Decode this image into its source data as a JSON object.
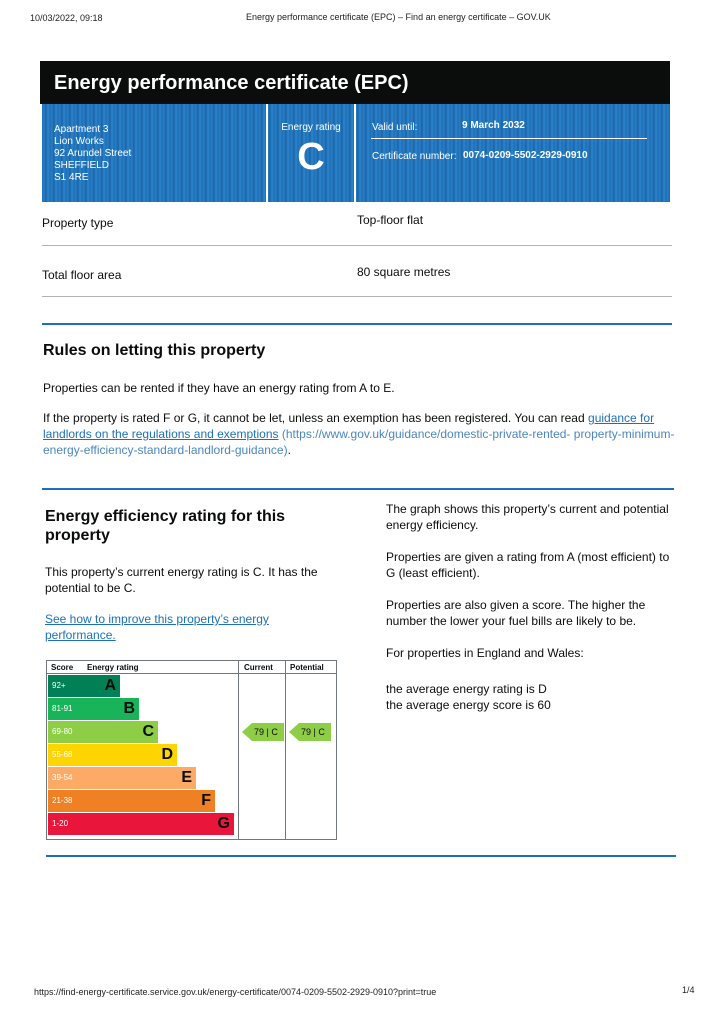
{
  "print_header": {
    "date": "10/03/2022, 09:18",
    "title": "Energy performance certificate (EPC) – Find an energy certificate – GOV.UK"
  },
  "print_footer": {
    "url": "https://find-energy-certificate.service.gov.uk/energy-certificate/0074-0209-5502-2929-0910?print=true",
    "page": "1/4"
  },
  "header": {
    "title": "Energy performance certificate (EPC)"
  },
  "certificate": {
    "address": [
      "Apartment 3",
      "Lion Works",
      "92 Arundel Street",
      "SHEFFIELD",
      "S1 4RE"
    ],
    "rating_label": "Energy rating",
    "rating": "C",
    "valid_label": "Valid until:",
    "valid_date": "9 March 2032",
    "cert_label": "Certificate number:",
    "cert_number": "0074-0209-5502-2929-0910",
    "banner_color": "#1d70b8"
  },
  "property": {
    "type_label": "Property type",
    "type_value": "Top-floor flat",
    "area_label": "Total floor area",
    "area_value": "80 square metres"
  },
  "rules": {
    "heading": "Rules on letting this property",
    "p1": "Properties can be rented if they have an energy rating from A to E.",
    "p2": "If the property is rated F or G, it cannot be let, unless an exemption has been registered. You can read",
    "link_text": "guidance for landlords on the regulations and exemptions",
    "link_url_a": "(https://www.gov.uk/guidance/domestic-private-rented-",
    "link_url_b": "property-minimum-energy-efficiency-standard-landlord-guidance)",
    "link_end": "."
  },
  "efficiency": {
    "heading": "Energy efficiency rating for this property",
    "current_text": "This property’s current energy rating is C. It has the potential to be C.",
    "improve_link": "See how to improve this property’s energy performance.",
    "graph": {
      "score_header": "Score",
      "rating_header": "Energy rating",
      "current_header": "Current",
      "potential_header": "Potential",
      "bands": [
        {
          "range": "92+",
          "letter": "A",
          "color": "#008054"
        },
        {
          "range": "81-91",
          "letter": "B",
          "color": "#19b459"
        },
        {
          "range": "69-80",
          "letter": "C",
          "color": "#8dce46"
        },
        {
          "range": "55-68",
          "letter": "D",
          "color": "#ffd500"
        },
        {
          "range": "39-54",
          "letter": "E",
          "color": "#fcaa65"
        },
        {
          "range": "21-38",
          "letter": "F",
          "color": "#ef8023"
        },
        {
          "range": "1-20",
          "letter": "G",
          "color": "#e9153b"
        }
      ],
      "current": {
        "score": "79",
        "letter": "C",
        "band_index": 2
      },
      "potential": {
        "score": "79",
        "letter": "C",
        "band_index": 2
      }
    },
    "right": {
      "p1": "The graph shows this property’s current and potential energy efficiency.",
      "p2": "Properties are given a rating from A (most efficient) to G (least efficient).",
      "p3": "Properties are also given a score. The higher the number the lower your fuel bills are likely to be.",
      "p4": "For properties in England and Wales:",
      "p5a": "the average energy rating is D",
      "p5b": "the average energy score is 60"
    }
  }
}
